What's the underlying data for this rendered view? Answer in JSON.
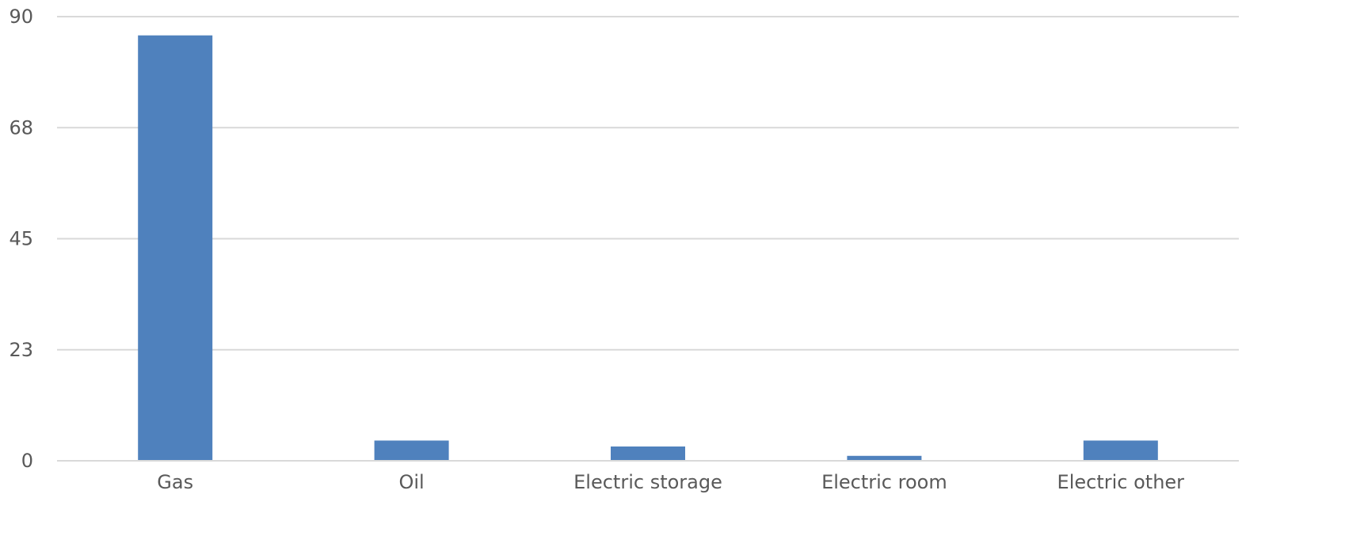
{
  "chart_data": {
    "type": "bar",
    "title": "",
    "xlabel": "",
    "ylabel": "",
    "categories": [
      "Gas",
      "Oil",
      "Electric storage",
      "Electric room",
      "Electric other"
    ],
    "values": [
      86.2,
      4.1,
      2.9,
      1.0,
      4.1
    ],
    "ylim": [
      0,
      90
    ],
    "yticks": [
      "0",
      "23",
      "45",
      "68",
      "90"
    ],
    "ytick_values": [
      0,
      22.5,
      45,
      67.5,
      90
    ],
    "grid": true,
    "legend": "none",
    "bar_color": "#4f81bd"
  }
}
